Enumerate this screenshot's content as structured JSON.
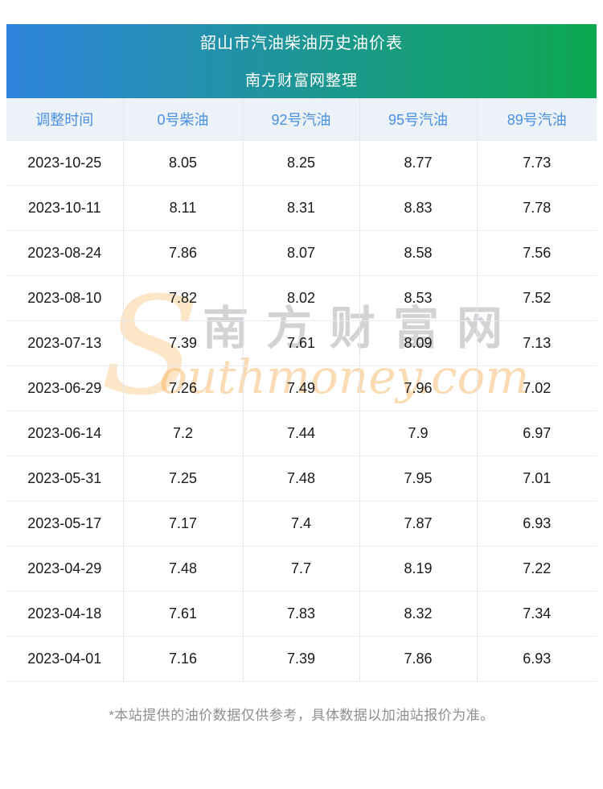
{
  "banner": {
    "title": "韶山市汽油柴油历史油价表",
    "subtitle": "南方财富网整理"
  },
  "chart_data": {
    "type": "table",
    "title": "韶山市汽油柴油历史油价表",
    "subtitle": "南方财富网整理",
    "columns": [
      "调整时间",
      "0号柴油",
      "92号汽油",
      "95号汽油",
      "89号汽油"
    ],
    "rows": [
      [
        "2023-10-25",
        "8.05",
        "8.25",
        "8.77",
        "7.73"
      ],
      [
        "2023-10-11",
        "8.11",
        "8.31",
        "8.83",
        "7.78"
      ],
      [
        "2023-08-24",
        "7.86",
        "8.07",
        "8.58",
        "7.56"
      ],
      [
        "2023-08-10",
        "7.82",
        "8.02",
        "8.53",
        "7.52"
      ],
      [
        "2023-07-13",
        "7.39",
        "7.61",
        "8.09",
        "7.13"
      ],
      [
        "2023-06-29",
        "7.26",
        "7.49",
        "7.96",
        "7.02"
      ],
      [
        "2023-06-14",
        "7.2",
        "7.44",
        "7.9",
        "6.97"
      ],
      [
        "2023-05-31",
        "7.25",
        "7.48",
        "7.95",
        "7.01"
      ],
      [
        "2023-05-17",
        "7.17",
        "7.4",
        "7.87",
        "6.93"
      ],
      [
        "2023-04-29",
        "7.48",
        "7.7",
        "8.19",
        "7.22"
      ],
      [
        "2023-04-18",
        "7.61",
        "7.83",
        "8.32",
        "7.34"
      ],
      [
        "2023-04-01",
        "7.16",
        "7.39",
        "7.86",
        "6.93"
      ]
    ]
  },
  "watermark": {
    "swoosh": "S",
    "cn": "南方财富网",
    "en": "outhmoney.com"
  },
  "footer": {
    "note": "*本站提供的油价数据仅供参考，具体数据以加油站报价为准。"
  },
  "colors": {
    "banner_gradient_start": "#2e84dc",
    "banner_gradient_end": "#0ca84f",
    "table_header_bg": "#edf2f9",
    "table_header_text": "#4a90e2",
    "body_text": "#1a1a1a",
    "footer_text": "#8f8f8f",
    "watermark_orange": "#f4a440",
    "watermark_gray": "#96969b"
  }
}
